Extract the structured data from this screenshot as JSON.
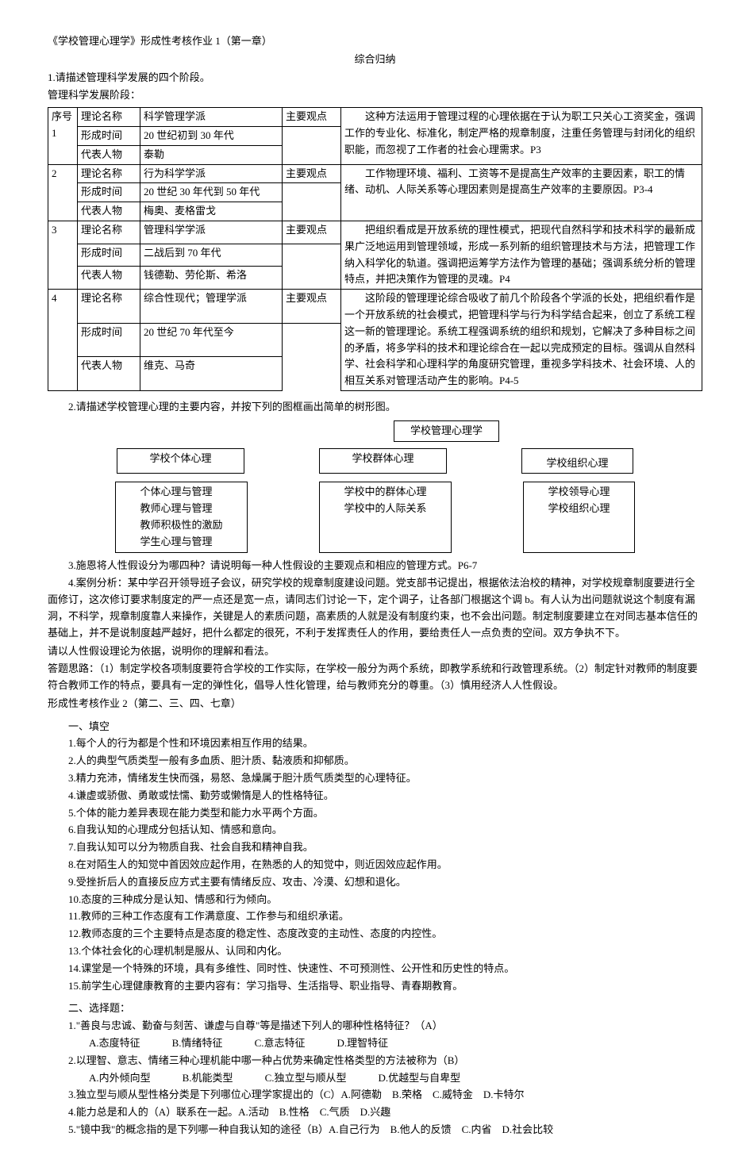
{
  "header": {
    "title": "《学校管理心理学》形成性考核作业 1（第一章）",
    "subtitle": "综合归纳",
    "q1": "1.请描述管理科学发展的四个阶段。",
    "q1_sub": "管理科学发展阶段："
  },
  "table_labels": {
    "seq": "序号",
    "theory": "理论名称",
    "time": "形成时间",
    "person": "代表人物",
    "view": "主要观点"
  },
  "rows": [
    {
      "seq": "1",
      "theory": "科学管理学派",
      "time": "20 世纪初到 30 年代",
      "person": "泰勒",
      "view": "　　这种方法运用于管理过程的心理依据在于认为职工只关心工资奖金，强调工作的专业化、标准化，制定严格的规章制度，注重任务管理与封闭化的组织职能，而忽视了工作者的社会心理需求。P3"
    },
    {
      "seq": "2",
      "theory": "行为科学学派",
      "time": "20 世纪 30 年代到 50 年代",
      "person": "梅奥、麦格雷戈",
      "view": "　　工作物理环境、福利、工资等不是提高生产效率的主要因素，职工的情绪、动机、人际关系等心理因素则是提高生产效率的主要原因。P3-4"
    },
    {
      "seq": "3",
      "theory": "管理科学学派",
      "time": "二战后到 70 年代",
      "person": "钱德勒、劳伦斯、希洛",
      "view": "　　把组织看成是开放系统的理性模式，把现代自然科学和技术科学的最新成果广泛地运用到管理领域，形成一系列新的组织管理技术与方法，把管理工作纳入科学化的轨道。强调把运筹学方法作为管理的基础；强调系统分析的管理特点，并把决策作为管理的灵魂。P4"
    },
    {
      "seq": "4",
      "theory": "综合性现代；管理学派",
      "time": "20 世纪 70 年代至今",
      "person": "维克、马奇",
      "view": "　　这阶段的管理理论综合吸收了前几个阶段各个学派的长处，把组织看作是一个开放系统的社会模式，把管理科学与行为科学结合起来，创立了系统工程这一新的管理理论。系统工程强调系统的组织和规划，它解决了多种目标之间的矛盾，将多学科的技术和理论综合在一起以完成预定的目标。强调从自然科学、社会科学和心理科学的角度研究管理，重视多学科技术、社会环境、人的相互关系对管理活动产生的影响。P4-5"
    }
  ],
  "q2": {
    "text": "2.请描述学校管理心理的主要内容，并按下列的图框画出简单的树形图。",
    "root": "学校管理心理学",
    "level2": [
      "学校个体心理",
      "学校群体心理",
      "学校组织心理"
    ],
    "level3": [
      [
        "个体心理与管理",
        "教师心理与管理",
        "教师积极性的激励",
        "学生心理与管理"
      ],
      [
        "学校中的群体心理",
        "学校中的人际关系"
      ],
      [
        "学校领导心理",
        "学校组织心理"
      ]
    ]
  },
  "q3": "3.施恩将人性假设分为哪四种？请说明每一种人性假设的主要观点和相应的管理方式。P6-7",
  "q4": {
    "p1": "4.案例分析：某中学召开领导班子会议，研究学校的规章制度建设问题。党支部书记提出，根据依法治校的精神，对学校规章制度要进行全面修订，这次修订要求制度定的严一点还是宽一点，请同志们讨论一下，定个调子，让各部门根据这个调 b。有人认为出问题就说这个制度有漏洞，不科学，规章制度靠人来操作，关键是人的素质问题，高素质的人就是没有制度约束，也不会出问题。制定制度要建立在对同志基本信任的基础上，并不是说制度越严越好，把什么都定的很死，不利于发挥责任人的作用，要给责任人一点负责的空间。双方争执不下。",
    "p2": "请以人性假设理论为依据，说明你的理解和看法。",
    "p3": "答题思路：（1）制定学校各项制度要符合学校的工作实际，在学校一般分为两个系统，即教学系统和行政管理系统。（2）制定针对教师的制度要符合教师工作的特点，要具有一定的弹性化，倡导人性化管理，给与教师充分的尊重。（3）慎用经济人人性假设。"
  },
  "hw2_title": "形成性考核作业 2（第二、三、四、七章）",
  "fill": {
    "label": "一、填空",
    "items": [
      "1.每个人的行为都是个性和环境因素相互作用的结果。",
      "2.人的典型气质类型一般有多血质、胆汁质、黏液质和抑郁质。",
      "3.精力充沛，情绪发生快而强，易怒、急燥属于胆汁质气质类型的心理特征。",
      "4.谦虚或骄傲、勇敢或怯懦、勤劳或懒惰是人的性格特征。",
      "5.个体的能力差异表现在能力类型和能力水平两个方面。",
      "6.自我认知的心理成分包括认知、情感和意向。",
      "7.自我认知可以分为物质自我、社会自我和精神自我。",
      "8.在对陌生人的知觉中首因效应起作用，在熟悉的人的知觉中，则近因效应起作用。",
      "9.受挫折后人的直接反应方式主要有情绪反应、攻击、冷漠、幻想和退化。",
      "10.态度的三种成分是认知、情感和行为倾向。",
      "11.教师的三种工作态度有工作满意度、工作参与和组织承诺。",
      "12.教师态度的三个主要特点是态度的稳定性、态度改变的主动性、态度的内控性。",
      "13.个体社会化的心理机制是服从、认同和内化。",
      "14.课堂是一个特殊的环境，具有多维性、同时性、快速性、不可预测性、公开性和历史性的特点。",
      "15.前学生心理健康教育的主要内容有：学习指导、生活指导、职业指导、青春期教育。"
    ]
  },
  "choice": {
    "label": "二、选择题：",
    "items": [
      {
        "q": "1.\"善良与忠诚、勤奋与刻苦、谦虚与自尊\"等是描述下列人的哪种性格特征？（A）",
        "opts": [
          "A.态度特征",
          "B.情绪特征",
          "C.意志特征",
          "D.理智特征"
        ]
      },
      {
        "q": "2.以理智、意志、情绪三种心理机能中哪一种占优势来确定性格类型的方法被称为（B）",
        "opts": [
          "A.内外倾向型",
          "B.机能类型",
          "C.独立型与顺从型",
          "D.优越型与自卑型"
        ]
      },
      {
        "q": "3.独立型与顺从型性格分类是下列哪位心理学家提出的（C）A.阿德勒　B.荣格　C.威特金　D.卡特尔",
        "opts": []
      },
      {
        "q": "4.能力总是和人的（A）联系在一起。A.活动　B.性格　C.气质　D.兴趣",
        "opts": []
      },
      {
        "q": "5.\"镜中我\"的概念指的是下列哪一种自我认知的途径（B）A.自己行为　B.他人的反馈　C.内省　D.社会比较",
        "opts": []
      }
    ]
  }
}
